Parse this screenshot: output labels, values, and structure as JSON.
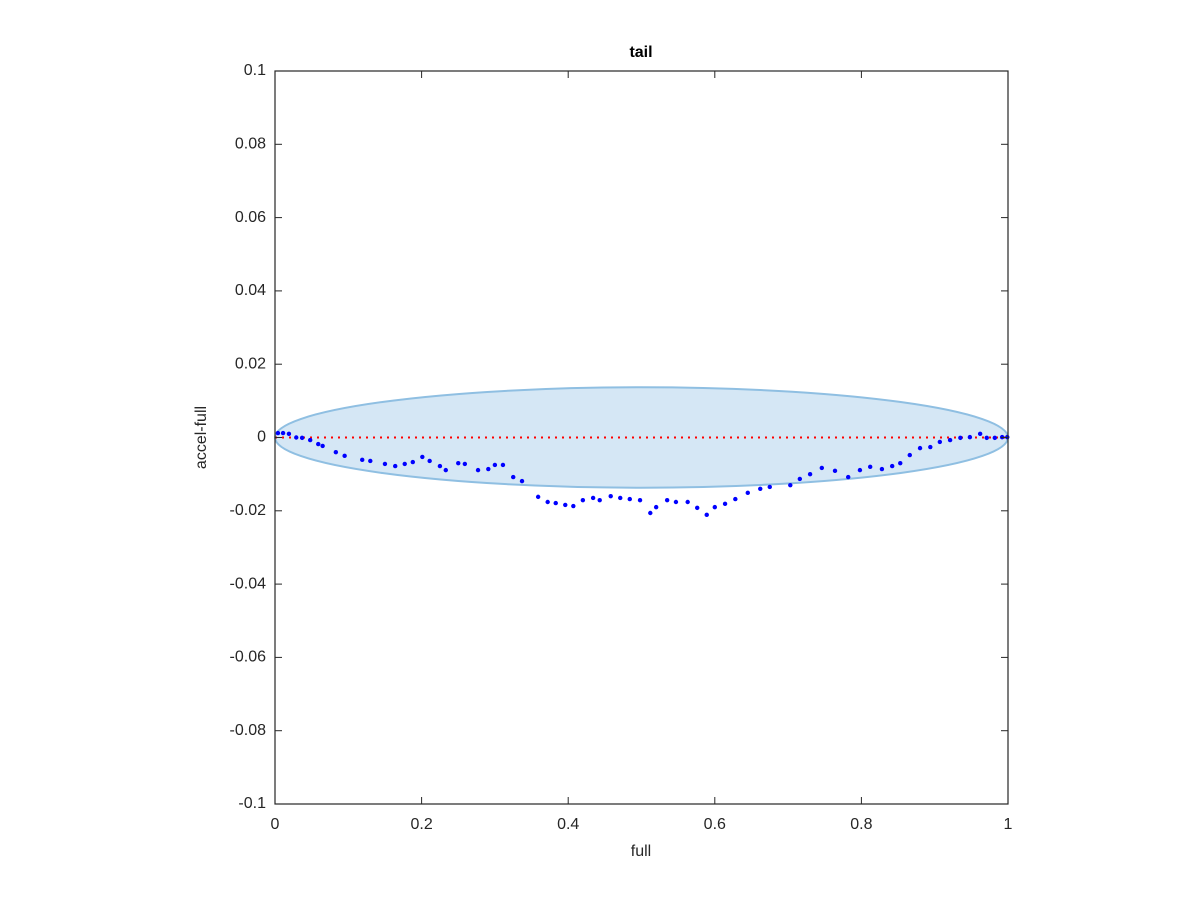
{
  "chart_data": {
    "type": "scatter",
    "title": "tail",
    "xlabel": "full",
    "ylabel": "accel-full",
    "xlim": [
      0,
      1
    ],
    "ylim": [
      -0.1,
      0.1
    ],
    "xticks": [
      0,
      0.2,
      0.4,
      0.6,
      0.8,
      1
    ],
    "yticks": [
      -0.1,
      -0.08,
      -0.06,
      -0.04,
      -0.02,
      0,
      0.02,
      0.04,
      0.06,
      0.08,
      0.1
    ],
    "color": "#0000ff",
    "ellipse": {
      "center": [
        0.5,
        0
      ],
      "radii": [
        0.5,
        0.0137
      ],
      "fill": "#d5e7f5",
      "stroke": "#8fbfe2"
    },
    "reference_line": {
      "y": 0,
      "color": "#ff0000"
    },
    "x": [
      0.004,
      0.011,
      0.019,
      0.029,
      0.037,
      0.048,
      0.059,
      0.065,
      0.083,
      0.095,
      0.119,
      0.13,
      0.15,
      0.164,
      0.177,
      0.188,
      0.201,
      0.211,
      0.225,
      0.233,
      0.25,
      0.259,
      0.277,
      0.291,
      0.3,
      0.311,
      0.325,
      0.337,
      0.359,
      0.372,
      0.383,
      0.396,
      0.407,
      0.42,
      0.434,
      0.443,
      0.458,
      0.471,
      0.484,
      0.498,
      0.512,
      0.52,
      0.535,
      0.547,
      0.563,
      0.576,
      0.589,
      0.6,
      0.614,
      0.628,
      0.645,
      0.662,
      0.675,
      0.703,
      0.716,
      0.73,
      0.746,
      0.764,
      0.782,
      0.798,
      0.812,
      0.828,
      0.842,
      0.853,
      0.866,
      0.88,
      0.894,
      0.907,
      0.921,
      0.935,
      0.948,
      0.962,
      0.971,
      0.982,
      0.992,
      0.999
    ],
    "values": [
      0.0012,
      0.0012,
      0.001,
      0,
      -0.0001,
      -0.0007,
      -0.0018,
      -0.0023,
      -0.004,
      -0.005,
      -0.0061,
      -0.0064,
      -0.0072,
      -0.0078,
      -0.0072,
      -0.0067,
      -0.0053,
      -0.0064,
      -0.0078,
      -0.0089,
      -0.007,
      -0.0072,
      -0.0089,
      -0.0086,
      -0.0075,
      -0.0075,
      -0.0108,
      -0.0119,
      -0.0162,
      -0.0176,
      -0.0179,
      -0.0184,
      -0.0187,
      -0.0171,
      -0.0165,
      -0.0171,
      -0.016,
      -0.0165,
      -0.0168,
      -0.0171,
      -0.0206,
      -0.019,
      -0.0171,
      -0.0176,
      -0.0176,
      -0.0192,
      -0.0211,
      -0.019,
      -0.0181,
      -0.0168,
      -0.0151,
      -0.014,
      -0.0135,
      -0.013,
      -0.0113,
      -0.01,
      -0.0083,
      -0.0091,
      -0.0108,
      -0.0089,
      -0.008,
      -0.0086,
      -0.0078,
      -0.007,
      -0.0048,
      -0.0029,
      -0.0026,
      -0.0012,
      -0.0007,
      -0.0001,
      0.0001,
      0.001,
      -0.0001,
      -0.0001,
      0.0001,
      0.0001
    ]
  }
}
